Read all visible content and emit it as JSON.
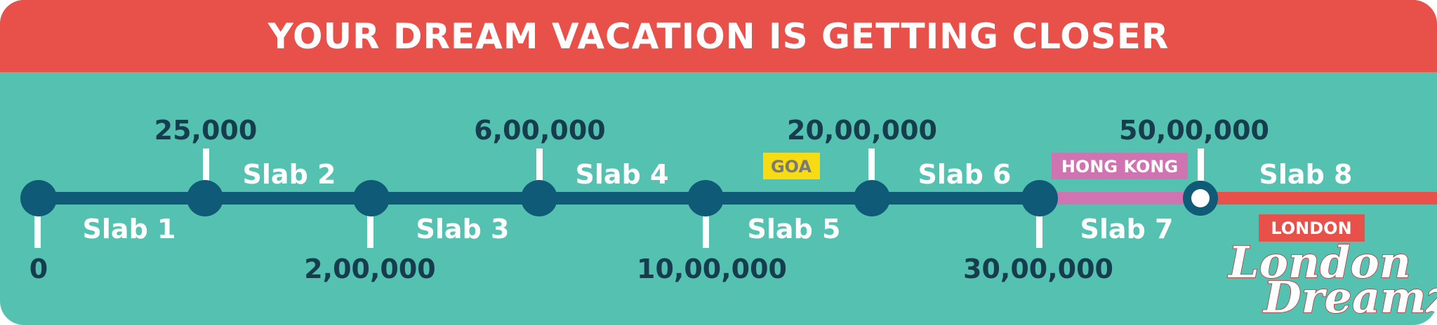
{
  "header": {
    "title": "YOUR DREAM VACATION IS GETTING CLOSER"
  },
  "colors": {
    "banner": "#e8504a",
    "background": "#54c1b1",
    "line": "#0f5a76",
    "amount_text": "#163d4e",
    "goa_tag": "#f7dc13",
    "goa_text": "#7a7a7a",
    "hongkong_tag": "#cf73b1",
    "london_tag": "#e8504a",
    "final_segment": "#e8504a"
  },
  "milestones": [
    {
      "amount": "0",
      "position": "below",
      "marker": "solid"
    },
    {
      "amount": "25,000",
      "position": "above",
      "marker": "solid"
    },
    {
      "amount": "2,00,000",
      "position": "below",
      "marker": "solid"
    },
    {
      "amount": "6,00,000",
      "position": "above",
      "marker": "solid"
    },
    {
      "amount": "10,00,000",
      "position": "below",
      "marker": "solid"
    },
    {
      "amount": "20,00,000",
      "position": "above",
      "marker": "solid"
    },
    {
      "amount": "30,00,000",
      "position": "below",
      "marker": "solid"
    },
    {
      "amount": "50,00,000",
      "position": "above",
      "marker": "open"
    }
  ],
  "slabs": [
    "Slab 1",
    "Slab 2",
    "Slab 3",
    "Slab 4",
    "Slab 5",
    "Slab 6",
    "Slab 7",
    "Slab 8"
  ],
  "destinations": {
    "goa": "GOA",
    "hong_kong": "HONG KONG",
    "london": "LONDON"
  },
  "logo": {
    "line1": "London",
    "line2": "Dreamz"
  }
}
